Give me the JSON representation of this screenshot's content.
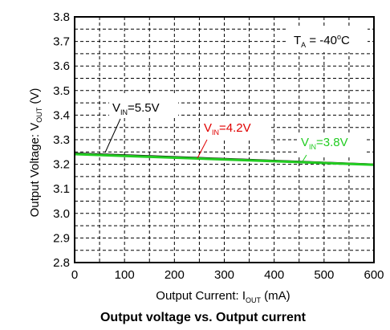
{
  "chart_data": {
    "type": "line",
    "caption": "Output voltage vs. Output current",
    "xlabel": {
      "text": "Output Current: I",
      "sub": "OUT",
      "suffix": " (mA)"
    },
    "ylabel": {
      "text": "Output Voltage: V",
      "sub": "OUT",
      "suffix": " (V)"
    },
    "xlim": [
      0,
      600
    ],
    "ylim": [
      2.8,
      3.8
    ],
    "xticks": [
      0,
      100,
      200,
      300,
      400,
      500,
      600
    ],
    "yticks": [
      "2.8",
      "2.9",
      "3.0",
      "3.1",
      "3.2",
      "3.3",
      "3.4",
      "3.5",
      "3.6",
      "3.7",
      "3.8"
    ],
    "x_minor_step": 50,
    "y_minor_step": 0.05,
    "grid": true,
    "condition": {
      "main": "T",
      "sub": "A",
      "value": " = -40",
      "sup": "o",
      "unit": "C"
    },
    "series": [
      {
        "name_main": "V",
        "name_sub": "IN",
        "name_value": "=5.5V",
        "color": "#000000",
        "x": [
          0,
          600
        ],
        "y": [
          3.245,
          3.2
        ]
      },
      {
        "name_main": "V",
        "name_sub": "IN",
        "name_value": "=4.2V",
        "color": "#e00000",
        "x": [
          0,
          600
        ],
        "y": [
          3.242,
          3.199
        ]
      },
      {
        "name_main": "V",
        "name_sub": "IN",
        "name_value": "=3.8V",
        "color": "#22cc22",
        "x": [
          0,
          600
        ],
        "y": [
          3.241,
          3.198
        ]
      }
    ]
  }
}
